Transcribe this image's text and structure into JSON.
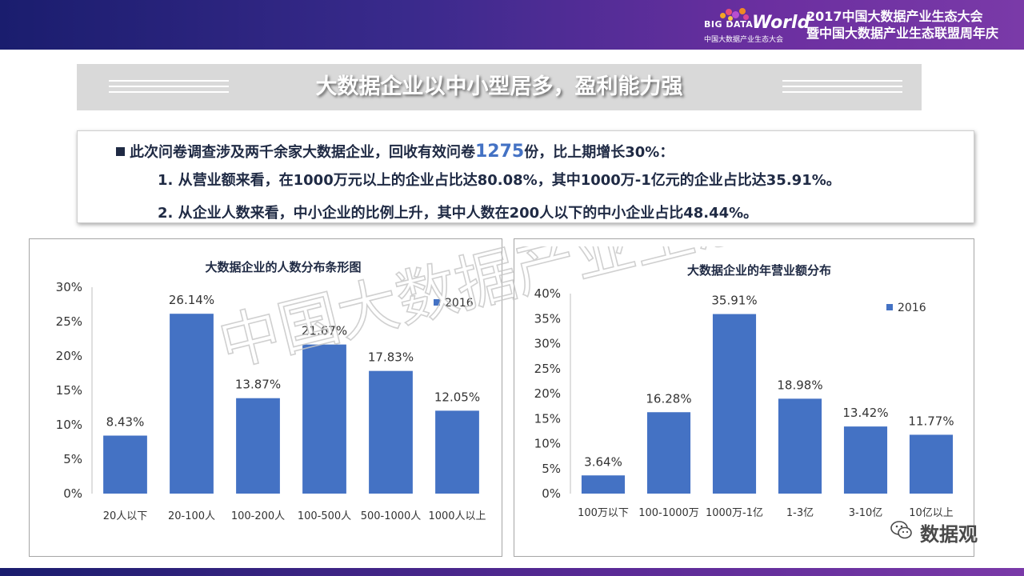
{
  "header": {
    "logo_big": "BIG DATA",
    "logo_world": "World",
    "logo_sub": "中国大数据产业生态大会",
    "event_line1": "2017中国大数据产业生态大会",
    "event_line2": "暨中国大数据产业生态联盟周年庆"
  },
  "title": "大数据企业以中小型居多，盈利能力强",
  "summary": {
    "line0_pre": "此次问卷调查涉及两千余家大数据企业，回收有效问卷",
    "line0_num": "1275",
    "line0_post": "份，比上期增长30%：",
    "line1": "1. 从营业额来看，在1000万元以上的企业占比达80.08%，其中1000万-1亿元的企业占比达35.91%。",
    "line2": "2. 从企业人数来看，中小企业的比例上升，其中人数在200人以下的中小企业占比48.44%。"
  },
  "watermark": "中国大数据产业生态联盟",
  "brand": "数据观",
  "colors": {
    "bar": "#4472c4",
    "header": "#2b2478",
    "text": "#1f2a44"
  },
  "chart_data": [
    {
      "type": "bar",
      "title": "大数据企业的人数分布条形图",
      "categories": [
        "20人以下",
        "20-100人",
        "100-200人",
        "100-500人",
        "500-1000人",
        "1000人以上"
      ],
      "series": [
        {
          "name": "2016",
          "values": [
            8.43,
            26.14,
            13.87,
            21.67,
            17.83,
            12.05
          ]
        }
      ],
      "data_labels": [
        "8.43%",
        "26.14%",
        "13.87%",
        "21.67%",
        "17.83%",
        "12.05%"
      ],
      "ylim": [
        0,
        30
      ],
      "yticks": [
        "0%",
        "5%",
        "10%",
        "15%",
        "20%",
        "25%",
        "30%"
      ],
      "legend": "top-right",
      "grid": false
    },
    {
      "type": "bar",
      "title": "大数据企业的年营业额分布",
      "categories": [
        "100万以下",
        "100-1000万",
        "1000万-1亿",
        "1-3亿",
        "3-10亿",
        "10亿以上"
      ],
      "series": [
        {
          "name": "2016",
          "values": [
            3.64,
            16.28,
            35.91,
            18.98,
            13.42,
            11.77
          ]
        }
      ],
      "data_labels": [
        "3.64%",
        "16.28%",
        "35.91%",
        "18.98%",
        "13.42%",
        "11.77%"
      ],
      "ylim": [
        0,
        40
      ],
      "yticks": [
        "0%",
        "5%",
        "10%",
        "15%",
        "20%",
        "25%",
        "30%",
        "35%",
        "40%"
      ],
      "legend": "top-right",
      "grid": false
    }
  ]
}
